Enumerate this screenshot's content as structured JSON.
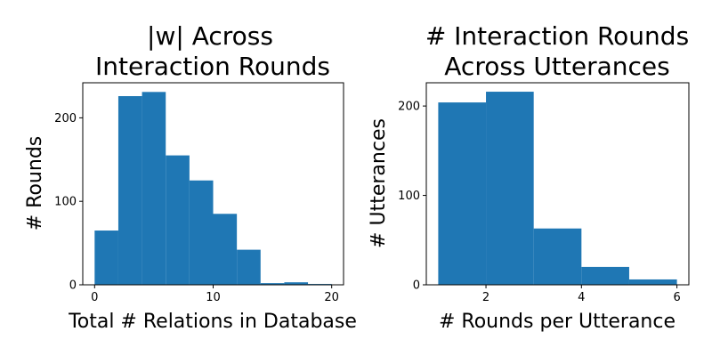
{
  "chart_data": [
    {
      "type": "bar",
      "title_lines": [
        "|w| Across",
        "Interaction Rounds"
      ],
      "xlabel": "Total # Relations in Database",
      "ylabel": "# Rounds",
      "xlim": [
        -1,
        21
      ],
      "ylim": [
        0,
        242
      ],
      "xticks": [
        0,
        10,
        20
      ],
      "yticks": [
        0,
        100,
        200
      ],
      "bin_edges": [
        0,
        2,
        4,
        6,
        8,
        10,
        12,
        14,
        16,
        18,
        20
      ],
      "values": [
        65,
        226,
        231,
        155,
        125,
        85,
        42,
        2,
        3,
        1
      ],
      "color": "#1f77b4"
    },
    {
      "type": "bar",
      "title_lines": [
        "# Interaction Rounds",
        "Across Utterances"
      ],
      "xlabel": "# Rounds per Utterance",
      "ylabel": "# Utterances",
      "xlim": [
        0.75,
        6.25
      ],
      "ylim": [
        0,
        226
      ],
      "xticks": [
        2,
        4,
        6
      ],
      "yticks": [
        0,
        100,
        200
      ],
      "bin_edges": [
        1,
        2,
        3,
        4,
        5,
        6
      ],
      "values": [
        204,
        216,
        63,
        20,
        6
      ],
      "color": "#1f77b4"
    }
  ]
}
